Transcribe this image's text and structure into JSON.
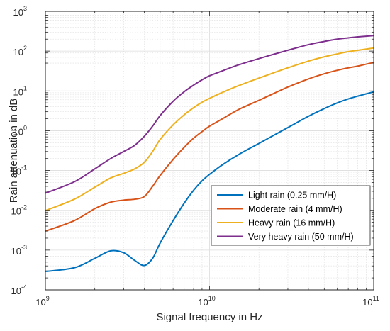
{
  "chart_data": {
    "type": "line",
    "title": "",
    "xlabel": "Signal frequency in Hz",
    "ylabel": "Rain attenuation in dB",
    "xscale": "log",
    "yscale": "log",
    "xlim": [
      1000000000.0,
      100000000000.0
    ],
    "ylim": [
      0.0001,
      1000.0
    ],
    "grid": true,
    "minor_grid": true,
    "legend_position": "bottom-right",
    "x_ticks": [
      {
        "base": "10",
        "exp": "9",
        "value": 1000000000.0
      },
      {
        "base": "10",
        "exp": "10",
        "value": 10000000000.0
      },
      {
        "base": "10",
        "exp": "11",
        "value": 100000000000.0
      }
    ],
    "y_ticks": [
      {
        "base": "10",
        "exp": "-4",
        "value": 0.0001
      },
      {
        "base": "10",
        "exp": "-3",
        "value": 0.001
      },
      {
        "base": "10",
        "exp": "-2",
        "value": 0.01
      },
      {
        "base": "10",
        "exp": "-1",
        "value": 0.1
      },
      {
        "base": "10",
        "exp": "0",
        "value": 1.0
      },
      {
        "base": "10",
        "exp": "1",
        "value": 10.0
      },
      {
        "base": "10",
        "exp": "2",
        "value": 100.0
      },
      {
        "base": "10",
        "exp": "3",
        "value": 1000.0
      }
    ],
    "x": [
      1000000000.0,
      1500000000.0,
      2000000000.0,
      2500000000.0,
      3000000000.0,
      3500000000.0,
      4000000000.0,
      4500000000.0,
      5000000000.0,
      6000000000.0,
      7000000000.0,
      8000000000.0,
      9000000000.0,
      10000000000.0,
      12000000000.0,
      15000000000.0,
      20000000000.0,
      30000000000.0,
      40000000000.0,
      50000000000.0,
      60000000000.0,
      70000000000.0,
      80000000000.0,
      100000000000.0
    ],
    "series": [
      {
        "name": "Light rain (0.25 mm/H)",
        "color": "#0072BD",
        "values": [
          0.00029,
          0.00036,
          0.00062,
          0.00096,
          0.00086,
          0.00055,
          0.00041,
          0.00062,
          0.0015,
          0.0055,
          0.015,
          0.032,
          0.055,
          0.08,
          0.14,
          0.25,
          0.48,
          1.2,
          2.3,
          3.6,
          5.0,
          6.3,
          7.4,
          9.5
        ]
      },
      {
        "name": "Moderate rain (4 mm/H)",
        "color": "#D95319",
        "values": [
          0.003,
          0.0055,
          0.011,
          0.016,
          0.018,
          0.019,
          0.022,
          0.04,
          0.075,
          0.19,
          0.38,
          0.65,
          0.95,
          1.3,
          2.0,
          3.4,
          5.8,
          12.5,
          20,
          27,
          33,
          38,
          42,
          52
        ]
      },
      {
        "name": "Heavy rain (16 mm/H)",
        "color": "#EDB120",
        "values": [
          0.0098,
          0.019,
          0.038,
          0.065,
          0.085,
          0.11,
          0.16,
          0.3,
          0.6,
          1.4,
          2.5,
          3.8,
          5.2,
          6.5,
          9.2,
          13.5,
          21,
          38,
          56,
          72,
          85,
          97,
          105,
          120
        ]
      },
      {
        "name": "Very heavy rain (50 mm/H)",
        "color": "#7E2F8E",
        "values": [
          0.027,
          0.052,
          0.11,
          0.2,
          0.3,
          0.43,
          0.72,
          1.3,
          2.4,
          5.5,
          9.5,
          14,
          19,
          24,
          32,
          45,
          65,
          105,
          145,
          175,
          200,
          215,
          228,
          245
        ]
      }
    ]
  }
}
